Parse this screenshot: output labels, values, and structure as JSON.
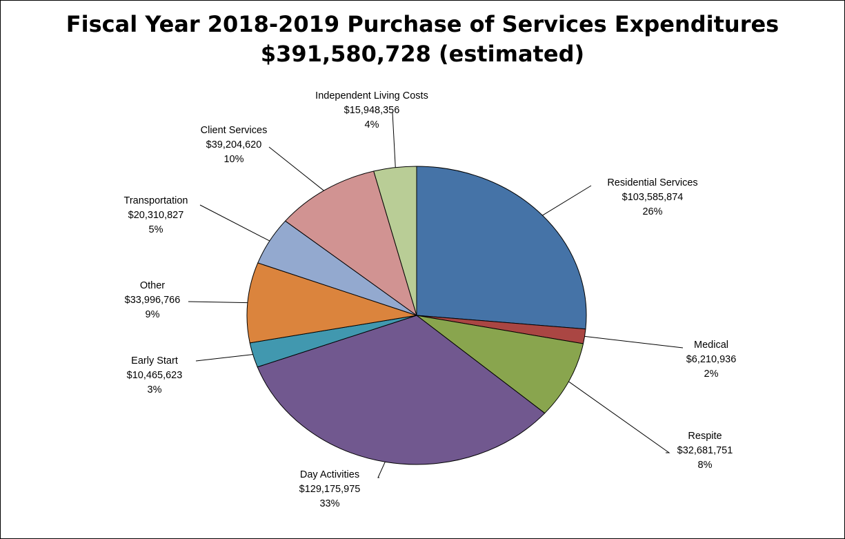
{
  "chart_data": {
    "type": "pie",
    "title": "Fiscal Year 2018-2019 Purchase of Services Expenditures",
    "subtitle": "$391,580,728 (estimated)",
    "total": 391580728,
    "slices": [
      {
        "name": "Residential Services",
        "value": 103585874,
        "value_label": "$103,585,874",
        "percent_label": "26%",
        "color": "#4573a7"
      },
      {
        "name": "Medical",
        "value": 6210936,
        "value_label": "$6,210,936",
        "percent_label": "2%",
        "color": "#aa4643"
      },
      {
        "name": "Respite",
        "value": 32681751,
        "value_label": "$32,681,751",
        "percent_label": "8%",
        "color": "#89a54e"
      },
      {
        "name": "Day Activities",
        "value": 129175975,
        "value_label": "$129,175,975",
        "percent_label": "33%",
        "color": "#71588f"
      },
      {
        "name": "Early Start",
        "value": 10465623,
        "value_label": "$10,465,623",
        "percent_label": "3%",
        "color": "#4198af"
      },
      {
        "name": "Other",
        "value": 33996766,
        "value_label": "$33,996,766",
        "percent_label": "9%",
        "color": "#db843d"
      },
      {
        "name": "Transportation",
        "value": 20310827,
        "value_label": "$20,310,827",
        "percent_label": "5%",
        "color": "#93a9cf"
      },
      {
        "name": "Client Services",
        "value": 39204620,
        "value_label": "$39,204,620",
        "percent_label": "10%",
        "color": "#d19392"
      },
      {
        "name": "Independent Living Costs",
        "value": 15948356,
        "value_label": "$15,948,356",
        "percent_label": "4%",
        "color": "#b9cd96"
      }
    ]
  }
}
